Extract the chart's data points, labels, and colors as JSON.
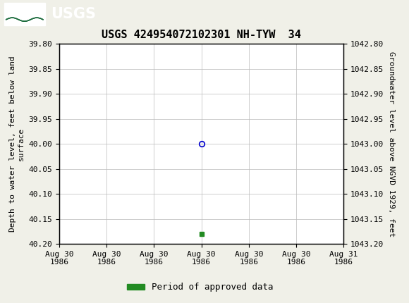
{
  "title": "USGS 424954072102301 NH-TYW  34",
  "ylabel_left": "Depth to water level, feet below land\nsurface",
  "ylabel_right": "Groundwater level above NGVD 1929, feet",
  "ylim_left": [
    39.8,
    40.2
  ],
  "ylim_right": [
    1042.8,
    1043.2
  ],
  "yticks_left": [
    39.8,
    39.85,
    39.9,
    39.95,
    40.0,
    40.05,
    40.1,
    40.15,
    40.2
  ],
  "yticks_right": [
    1042.8,
    1042.85,
    1042.9,
    1042.95,
    1043.0,
    1043.05,
    1043.1,
    1043.15,
    1043.2
  ],
  "ytick_labels_left": [
    "39.80",
    "39.85",
    "39.90",
    "39.95",
    "40.00",
    "40.05",
    "40.10",
    "40.15",
    "40.20"
  ],
  "ytick_labels_right": [
    "1042.80",
    "1042.85",
    "1042.90",
    "1042.95",
    "1043.00",
    "1043.05",
    "1043.10",
    "1043.15",
    "1043.20"
  ],
  "xtick_positions": [
    0,
    1,
    2,
    3,
    4,
    5,
    6
  ],
  "xtick_labels": [
    "Aug 30\n1986",
    "Aug 30\n1986",
    "Aug 30\n1986",
    "Aug 30\n1986",
    "Aug 30\n1986",
    "Aug 30\n1986",
    "Aug 31\n1986"
  ],
  "xlim": [
    0,
    6
  ],
  "data_point_x": 3,
  "data_point_y": 40.0,
  "data_point_color": "#0000cd",
  "green_marker_x": 3,
  "green_marker_y": 40.18,
  "green_color": "#228B22",
  "bg_color": "#f0f0e8",
  "plot_bg_color": "#ffffff",
  "header_color": "#1a6b3c",
  "grid_color": "#bbbbbb",
  "title_fontsize": 11,
  "axis_label_fontsize": 8,
  "tick_fontsize": 8,
  "legend_text": "Period of approved data",
  "legend_fontsize": 9
}
